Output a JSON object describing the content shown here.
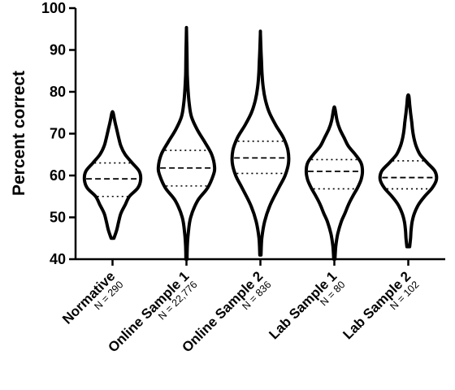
{
  "chart_data": {
    "type": "violin",
    "title": "",
    "xlabel": "",
    "ylabel": "Percent correct",
    "ylim": [
      40,
      100
    ],
    "yticks": [
      40,
      50,
      60,
      70,
      80,
      90,
      100
    ],
    "grid": false,
    "legend": "none",
    "series": [
      {
        "category": "Normative",
        "n_label": "N = 290",
        "min": 45,
        "max": 75,
        "q1": 55,
        "median": 59.2,
        "q3": 63,
        "density": [
          [
            45,
            0.05
          ],
          [
            47,
            0.15
          ],
          [
            49,
            0.22
          ],
          [
            51,
            0.3
          ],
          [
            53,
            0.45
          ],
          [
            55,
            0.6
          ],
          [
            57,
            0.9
          ],
          [
            59,
            1.0
          ],
          [
            61,
            0.95
          ],
          [
            63,
            0.7
          ],
          [
            65,
            0.45
          ],
          [
            67,
            0.3
          ],
          [
            69,
            0.22
          ],
          [
            71,
            0.15
          ],
          [
            73,
            0.08
          ],
          [
            75,
            0.02
          ]
        ]
      },
      {
        "category": "Online Sample 1",
        "n_label": "N = 22,776",
        "min": 40,
        "max": 95,
        "q1": 57.5,
        "median": 61.8,
        "q3": 66,
        "density": [
          [
            40,
            0.02
          ],
          [
            43,
            0.03
          ],
          [
            46,
            0.06
          ],
          [
            50,
            0.15
          ],
          [
            54,
            0.4
          ],
          [
            57,
            0.75
          ],
          [
            60,
            0.95
          ],
          [
            62,
            1.0
          ],
          [
            65,
            0.9
          ],
          [
            68,
            0.65
          ],
          [
            71,
            0.38
          ],
          [
            74,
            0.18
          ],
          [
            77,
            0.1
          ],
          [
            80,
            0.06
          ],
          [
            84,
            0.03
          ],
          [
            88,
            0.02
          ],
          [
            92,
            0.01
          ],
          [
            95,
            0.0
          ]
        ]
      },
      {
        "category": "Online Sample 2",
        "n_label": "N = 836",
        "min": 41,
        "max": 94,
        "q1": 60.5,
        "median": 64.2,
        "q3": 68.2,
        "density": [
          [
            41,
            0.02
          ],
          [
            45,
            0.05
          ],
          [
            49,
            0.15
          ],
          [
            53,
            0.35
          ],
          [
            57,
            0.65
          ],
          [
            60,
            0.88
          ],
          [
            63,
            1.0
          ],
          [
            66,
            0.98
          ],
          [
            69,
            0.82
          ],
          [
            72,
            0.55
          ],
          [
            75,
            0.32
          ],
          [
            78,
            0.18
          ],
          [
            81,
            0.1
          ],
          [
            84,
            0.06
          ],
          [
            87,
            0.04
          ],
          [
            90,
            0.02
          ],
          [
            94,
            0.0
          ]
        ]
      },
      {
        "category": "Lab Sample 1",
        "n_label": "N = 80",
        "min": 40,
        "max": 76,
        "q1": 56.8,
        "median": 61,
        "q3": 63.8,
        "density": [
          [
            40,
            0.02
          ],
          [
            43,
            0.05
          ],
          [
            46,
            0.12
          ],
          [
            49,
            0.25
          ],
          [
            51,
            0.38
          ],
          [
            53,
            0.5
          ],
          [
            55,
            0.65
          ],
          [
            57,
            0.82
          ],
          [
            59,
            0.95
          ],
          [
            61,
            1.0
          ],
          [
            63,
            0.95
          ],
          [
            65,
            0.75
          ],
          [
            67,
            0.5
          ],
          [
            69,
            0.35
          ],
          [
            71,
            0.2
          ],
          [
            73,
            0.1
          ],
          [
            76,
            0.02
          ]
        ]
      },
      {
        "category": "Lab Sample 2",
        "n_label": "N = 102",
        "min": 43,
        "max": 79,
        "q1": 56.8,
        "median": 59.5,
        "q3": 63.5,
        "density": [
          [
            43,
            0.05
          ],
          [
            45,
            0.08
          ],
          [
            47,
            0.1
          ],
          [
            49,
            0.14
          ],
          [
            51,
            0.22
          ],
          [
            53,
            0.36
          ],
          [
            55,
            0.58
          ],
          [
            57,
            0.85
          ],
          [
            59,
            1.0
          ],
          [
            61,
            0.95
          ],
          [
            63,
            0.68
          ],
          [
            65,
            0.42
          ],
          [
            67,
            0.28
          ],
          [
            69,
            0.2
          ],
          [
            71,
            0.15
          ],
          [
            73,
            0.12
          ],
          [
            75,
            0.08
          ],
          [
            77,
            0.05
          ],
          [
            79,
            0.02
          ]
        ]
      }
    ]
  }
}
